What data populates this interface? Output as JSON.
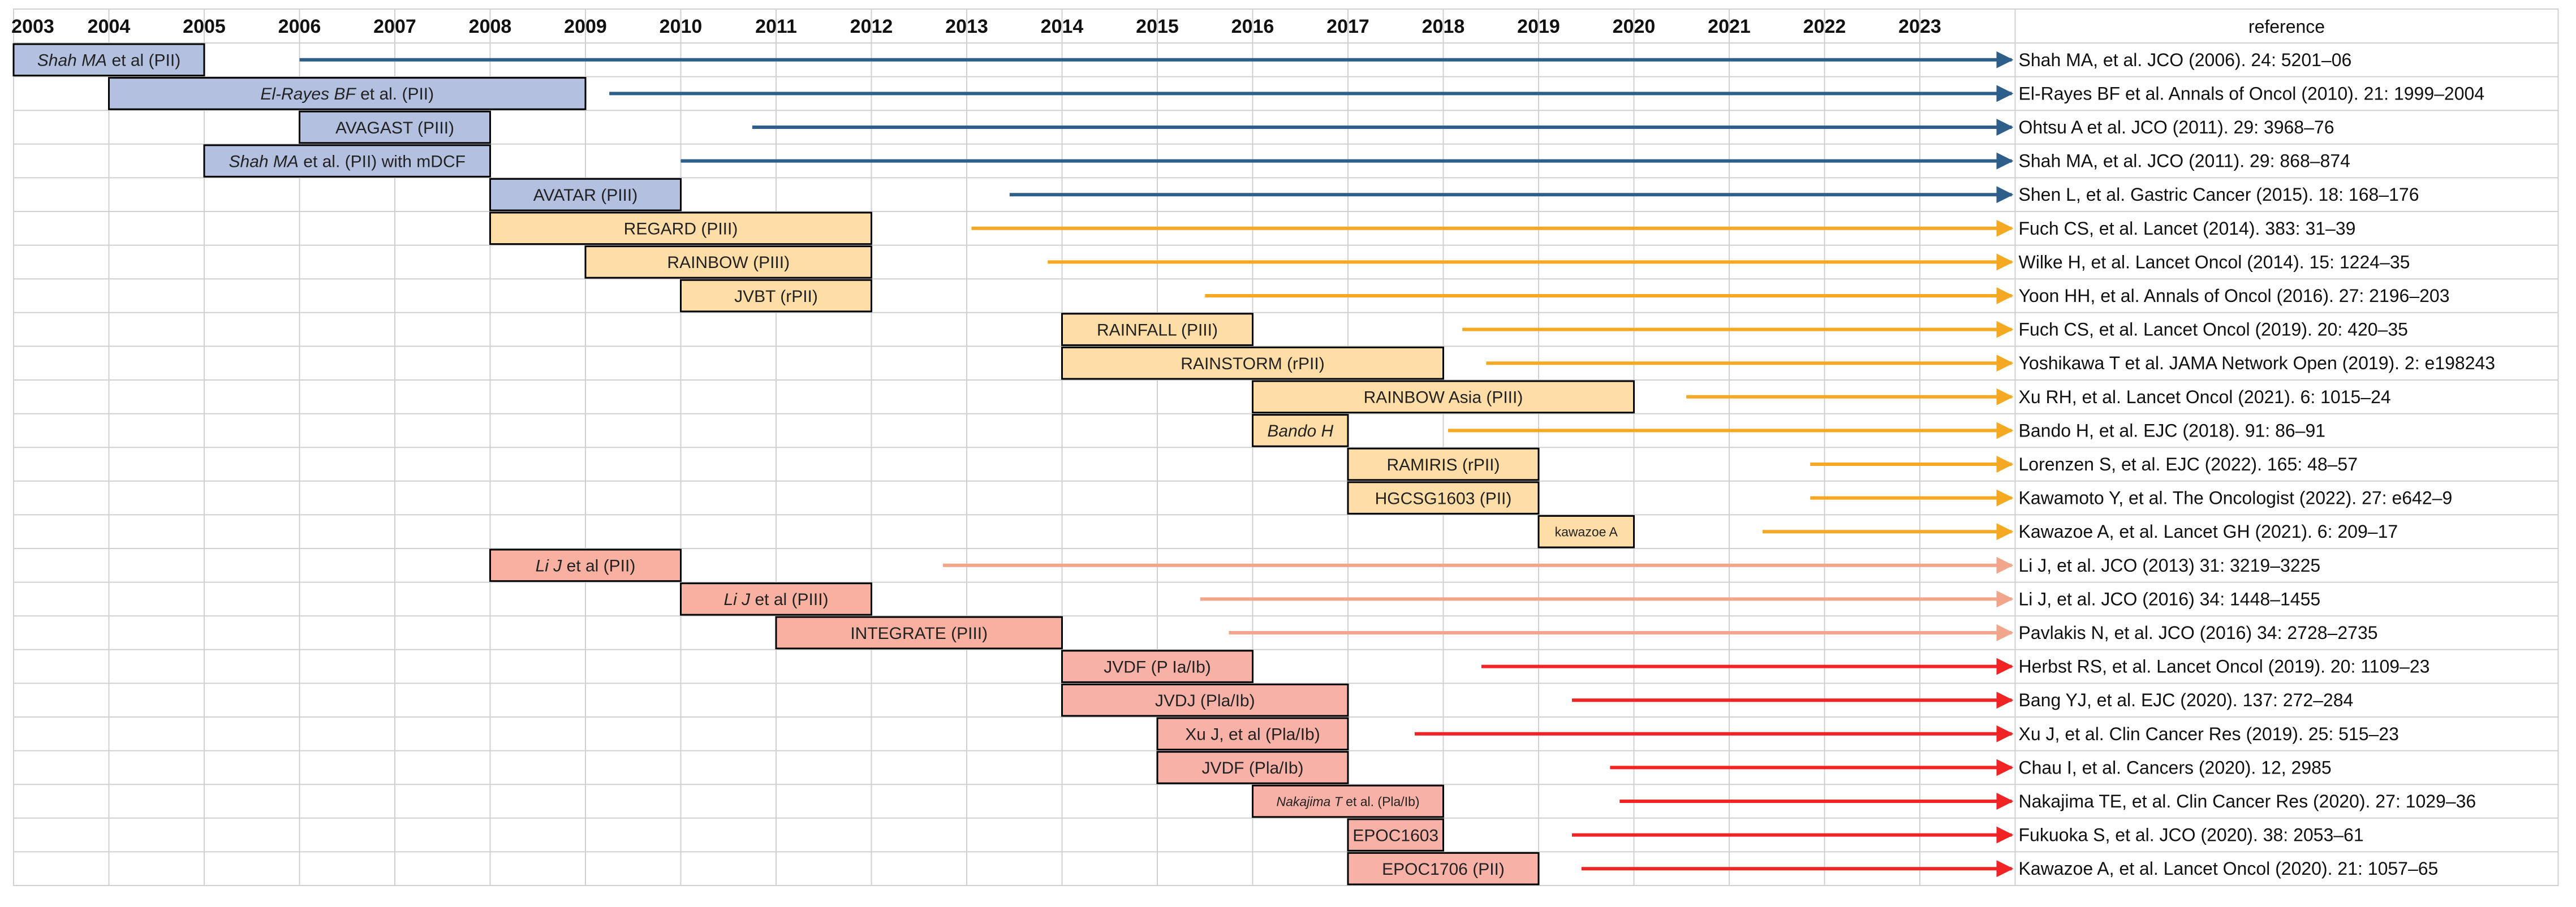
{
  "chart_data": {
    "type": "timeline",
    "x_range": [
      2003,
      2023
    ],
    "years": [
      "2003",
      "2004",
      "2005",
      "2006",
      "2007",
      "2008",
      "2009",
      "2010",
      "2011",
      "2012",
      "2013",
      "2014",
      "2015",
      "2016",
      "2017",
      "2018",
      "2019",
      "2020",
      "2021",
      "2022",
      "2023"
    ],
    "reference_header": "reference",
    "grid": true,
    "colors": {
      "blue_fill": "#b4c0e0",
      "blue_arrow": "#2e5f8a",
      "orange_fill": "#fedda6",
      "orange_arrow": "#f5a822",
      "salmon_fill": "#f8b1a1",
      "salmon_arrow": "#f1a68b",
      "red_fill": "#f8b1a7",
      "red_arrow": "#f02424",
      "grid": "#d0d0d0",
      "border": "#000000"
    },
    "rows": [
      {
        "group": "blue",
        "label_parts": [
          [
            "Shah MA",
            true
          ],
          [
            " et al (PII)",
            false
          ]
        ],
        "start": 2003.0,
        "end": 2005.0,
        "arrow_start": 2006.0,
        "reference": "Shah MA, et al. JCO (2006). 24: 5201–06"
      },
      {
        "group": "blue",
        "label_parts": [
          [
            "El-Rayes BF",
            true
          ],
          [
            " et al. (PII)",
            false
          ]
        ],
        "start": 2004.0,
        "end": 2009.0,
        "arrow_start": 2009.25,
        "reference": "El-Rayes BF et al. Annals of Oncol (2010). 21: 1999–2004"
      },
      {
        "group": "blue",
        "label_parts": [
          [
            "AVAGAST (PIII)",
            false
          ]
        ],
        "start": 2006.0,
        "end": 2008.0,
        "arrow_start": 2010.75,
        "reference": "Ohtsu A et al. JCO (2011). 29: 3968–76"
      },
      {
        "group": "blue",
        "label_parts": [
          [
            "Shah MA",
            true
          ],
          [
            " et al. (PII) with mDCF",
            false
          ]
        ],
        "start": 2005.0,
        "end": 2008.0,
        "arrow_start": 2010.0,
        "reference": "Shah MA, et al. JCO (2011). 29: 868–874"
      },
      {
        "group": "blue",
        "label_parts": [
          [
            "AVATAR (PIII)",
            false
          ]
        ],
        "start": 2008.0,
        "end": 2010.0,
        "arrow_start": 2013.45,
        "reference": "Shen L, et al. Gastric Cancer (2015). 18: 168–176"
      },
      {
        "group": "orange",
        "label_parts": [
          [
            "REGARD (PIII)",
            false
          ]
        ],
        "start": 2008.0,
        "end": 2012.0,
        "arrow_start": 2013.05,
        "reference": "Fuch CS, et al. Lancet (2014). 383: 31–39"
      },
      {
        "group": "orange",
        "label_parts": [
          [
            "RAINBOW (PIII)",
            false
          ]
        ],
        "start": 2009.0,
        "end": 2012.0,
        "arrow_start": 2013.85,
        "reference": "Wilke H, et al. Lancet Oncol (2014). 15: 1224–35"
      },
      {
        "group": "orange",
        "label_parts": [
          [
            "JVBT (rPII)",
            false
          ]
        ],
        "start": 2010.0,
        "end": 2012.0,
        "arrow_start": 2015.5,
        "reference": "Yoon HH, et al. Annals of Oncol (2016). 27: 2196–203"
      },
      {
        "group": "orange",
        "label_parts": [
          [
            "RAINFALL (PIII)",
            false
          ]
        ],
        "start": 2014.0,
        "end": 2016.0,
        "arrow_start": 2018.2,
        "reference": "Fuch CS, et al. Lancet Oncol (2019). 20: 420–35"
      },
      {
        "group": "orange",
        "label_parts": [
          [
            "RAINSTORM (rPII)",
            false
          ]
        ],
        "start": 2014.0,
        "end": 2018.0,
        "arrow_start": 2018.45,
        "reference": "Yoshikawa T et al. JAMA Network Open (2019). 2: e198243"
      },
      {
        "group": "orange",
        "label_parts": [
          [
            "RAINBOW Asia (PIII)",
            false
          ]
        ],
        "start": 2016.0,
        "end": 2020.0,
        "arrow_start": 2020.55,
        "reference": "Xu RH, et al. Lancet Oncol (2021). 6: 1015–24"
      },
      {
        "group": "orange",
        "label_parts": [
          [
            "Bando H",
            true
          ]
        ],
        "start": 2016.0,
        "end": 2017.0,
        "arrow_start": 2018.05,
        "reference": "Bando H, et al. EJC (2018). 91: 86–91"
      },
      {
        "group": "orange",
        "label_parts": [
          [
            "RAMIRIS (rPII)",
            false
          ]
        ],
        "start": 2017.0,
        "end": 2019.0,
        "arrow_start": 2021.85,
        "reference": "Lorenzen S, et al. EJC (2022). 165: 48–57"
      },
      {
        "group": "orange",
        "label_parts": [
          [
            "HGCSG1603 (PII)",
            false
          ]
        ],
        "start": 2017.0,
        "end": 2019.0,
        "arrow_start": 2021.85,
        "reference": "Kawamoto Y, et al. The Oncologist (2022). 27: e642–9"
      },
      {
        "group": "orange",
        "label_parts": [
          [
            "kawazoe A",
            false
          ]
        ],
        "label_small": true,
        "start": 2019.0,
        "end": 2020.0,
        "arrow_start": 2021.35,
        "reference": "Kawazoe A, et al. Lancet GH (2021). 6: 209–17"
      },
      {
        "group": "salmon",
        "label_parts": [
          [
            "Li J",
            true
          ],
          [
            " et al (PII)",
            false
          ]
        ],
        "start": 2008.0,
        "end": 2010.0,
        "arrow_start": 2012.75,
        "reference": "Li J, et al. JCO (2013) 31: 3219–3225"
      },
      {
        "group": "salmon",
        "label_parts": [
          [
            "Li J",
            true
          ],
          [
            " et al (PIII)",
            false
          ]
        ],
        "start": 2010.0,
        "end": 2012.0,
        "arrow_start": 2015.45,
        "reference": "Li J, et al. JCO (2016) 34: 1448–1455"
      },
      {
        "group": "salmon",
        "label_parts": [
          [
            "INTEGRATE (PIII)",
            false
          ]
        ],
        "start": 2011.0,
        "end": 2014.0,
        "arrow_start": 2015.75,
        "reference": "Pavlakis N, et al. JCO (2016) 34: 2728–2735"
      },
      {
        "group": "red",
        "label_parts": [
          [
            "JVDF (P Ia/Ib)",
            false
          ]
        ],
        "start": 2014.0,
        "end": 2016.0,
        "arrow_start": 2018.4,
        "reference": "Herbst RS, et al. Lancet Oncol (2019). 20: 1109–23"
      },
      {
        "group": "red",
        "label_parts": [
          [
            "JVDJ (Pla/Ib)",
            false
          ]
        ],
        "start": 2014.0,
        "end": 2017.0,
        "arrow_start": 2019.35,
        "reference": "Bang YJ, et al. EJC (2020). 137: 272–284"
      },
      {
        "group": "red",
        "label_parts": [
          [
            "Xu J, et al (Pla/Ib)",
            false
          ]
        ],
        "start": 2015.0,
        "end": 2017.0,
        "arrow_start": 2017.7,
        "reference": "Xu J, et al. Clin Cancer Res (2019). 25: 515–23"
      },
      {
        "group": "red",
        "label_parts": [
          [
            "JVDF (Pla/Ib)",
            false
          ]
        ],
        "start": 2015.0,
        "end": 2017.0,
        "arrow_start": 2019.75,
        "reference": "Chau I, et al. Cancers (2020). 12, 2985"
      },
      {
        "group": "red",
        "label_parts": [
          [
            "Nakajima T",
            true
          ],
          [
            " et al. (Pla/Ib)",
            false
          ]
        ],
        "label_small": true,
        "start": 2016.0,
        "end": 2018.0,
        "arrow_start": 2019.85,
        "reference": "Nakajima TE, et al. Clin Cancer Res (2020). 27: 1029–36"
      },
      {
        "group": "red",
        "label_parts": [
          [
            "EPOC1603",
            false
          ]
        ],
        "start": 2017.0,
        "end": 2018.0,
        "arrow_start": 2019.35,
        "reference": "Fukuoka S, et al. JCO (2020). 38: 2053–61"
      },
      {
        "group": "red",
        "label_parts": [
          [
            "EPOC1706 (PII)",
            false
          ]
        ],
        "start": 2017.0,
        "end": 2019.0,
        "arrow_start": 2019.45,
        "reference": "Kawazoe A, et al. Lancet Oncol (2020). 21: 1057–65"
      }
    ]
  }
}
